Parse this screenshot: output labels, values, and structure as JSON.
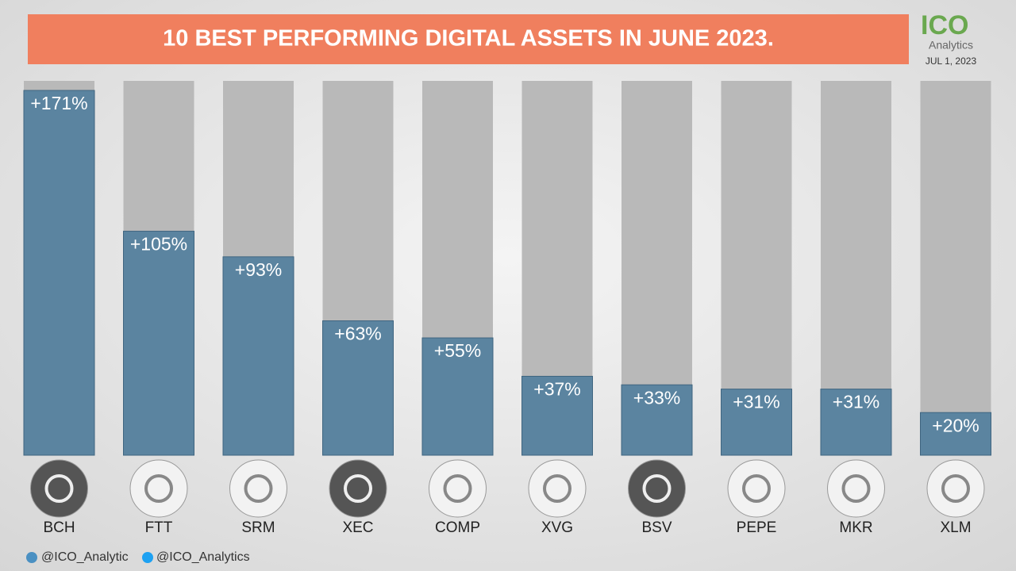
{
  "chart_data": {
    "type": "bar",
    "title": "10 BEST PERFORMING DIGITAL ASSETS IN JUNE 2023.",
    "categories": [
      "BCH",
      "FTT",
      "SRM",
      "XEC",
      "COMP",
      "XVG",
      "BSV",
      "PEPE",
      "MKR",
      "XLM"
    ],
    "values": [
      171,
      105,
      93,
      63,
      55,
      37,
      33,
      31,
      31,
      20
    ],
    "value_labels": [
      "+171%",
      "+105%",
      "+93%",
      "+63%",
      "+55%",
      "+37%",
      "+33%",
      "+31%",
      "+31%",
      "+20%"
    ],
    "color": "#5b84a0"
  },
  "logo": {
    "name": "ICO",
    "subtitle": "Analytics",
    "date": "JUL 1, 2023"
  },
  "footer": {
    "telegram": "@ICO_Analytic",
    "twitter": "@ICO_Analytics"
  }
}
